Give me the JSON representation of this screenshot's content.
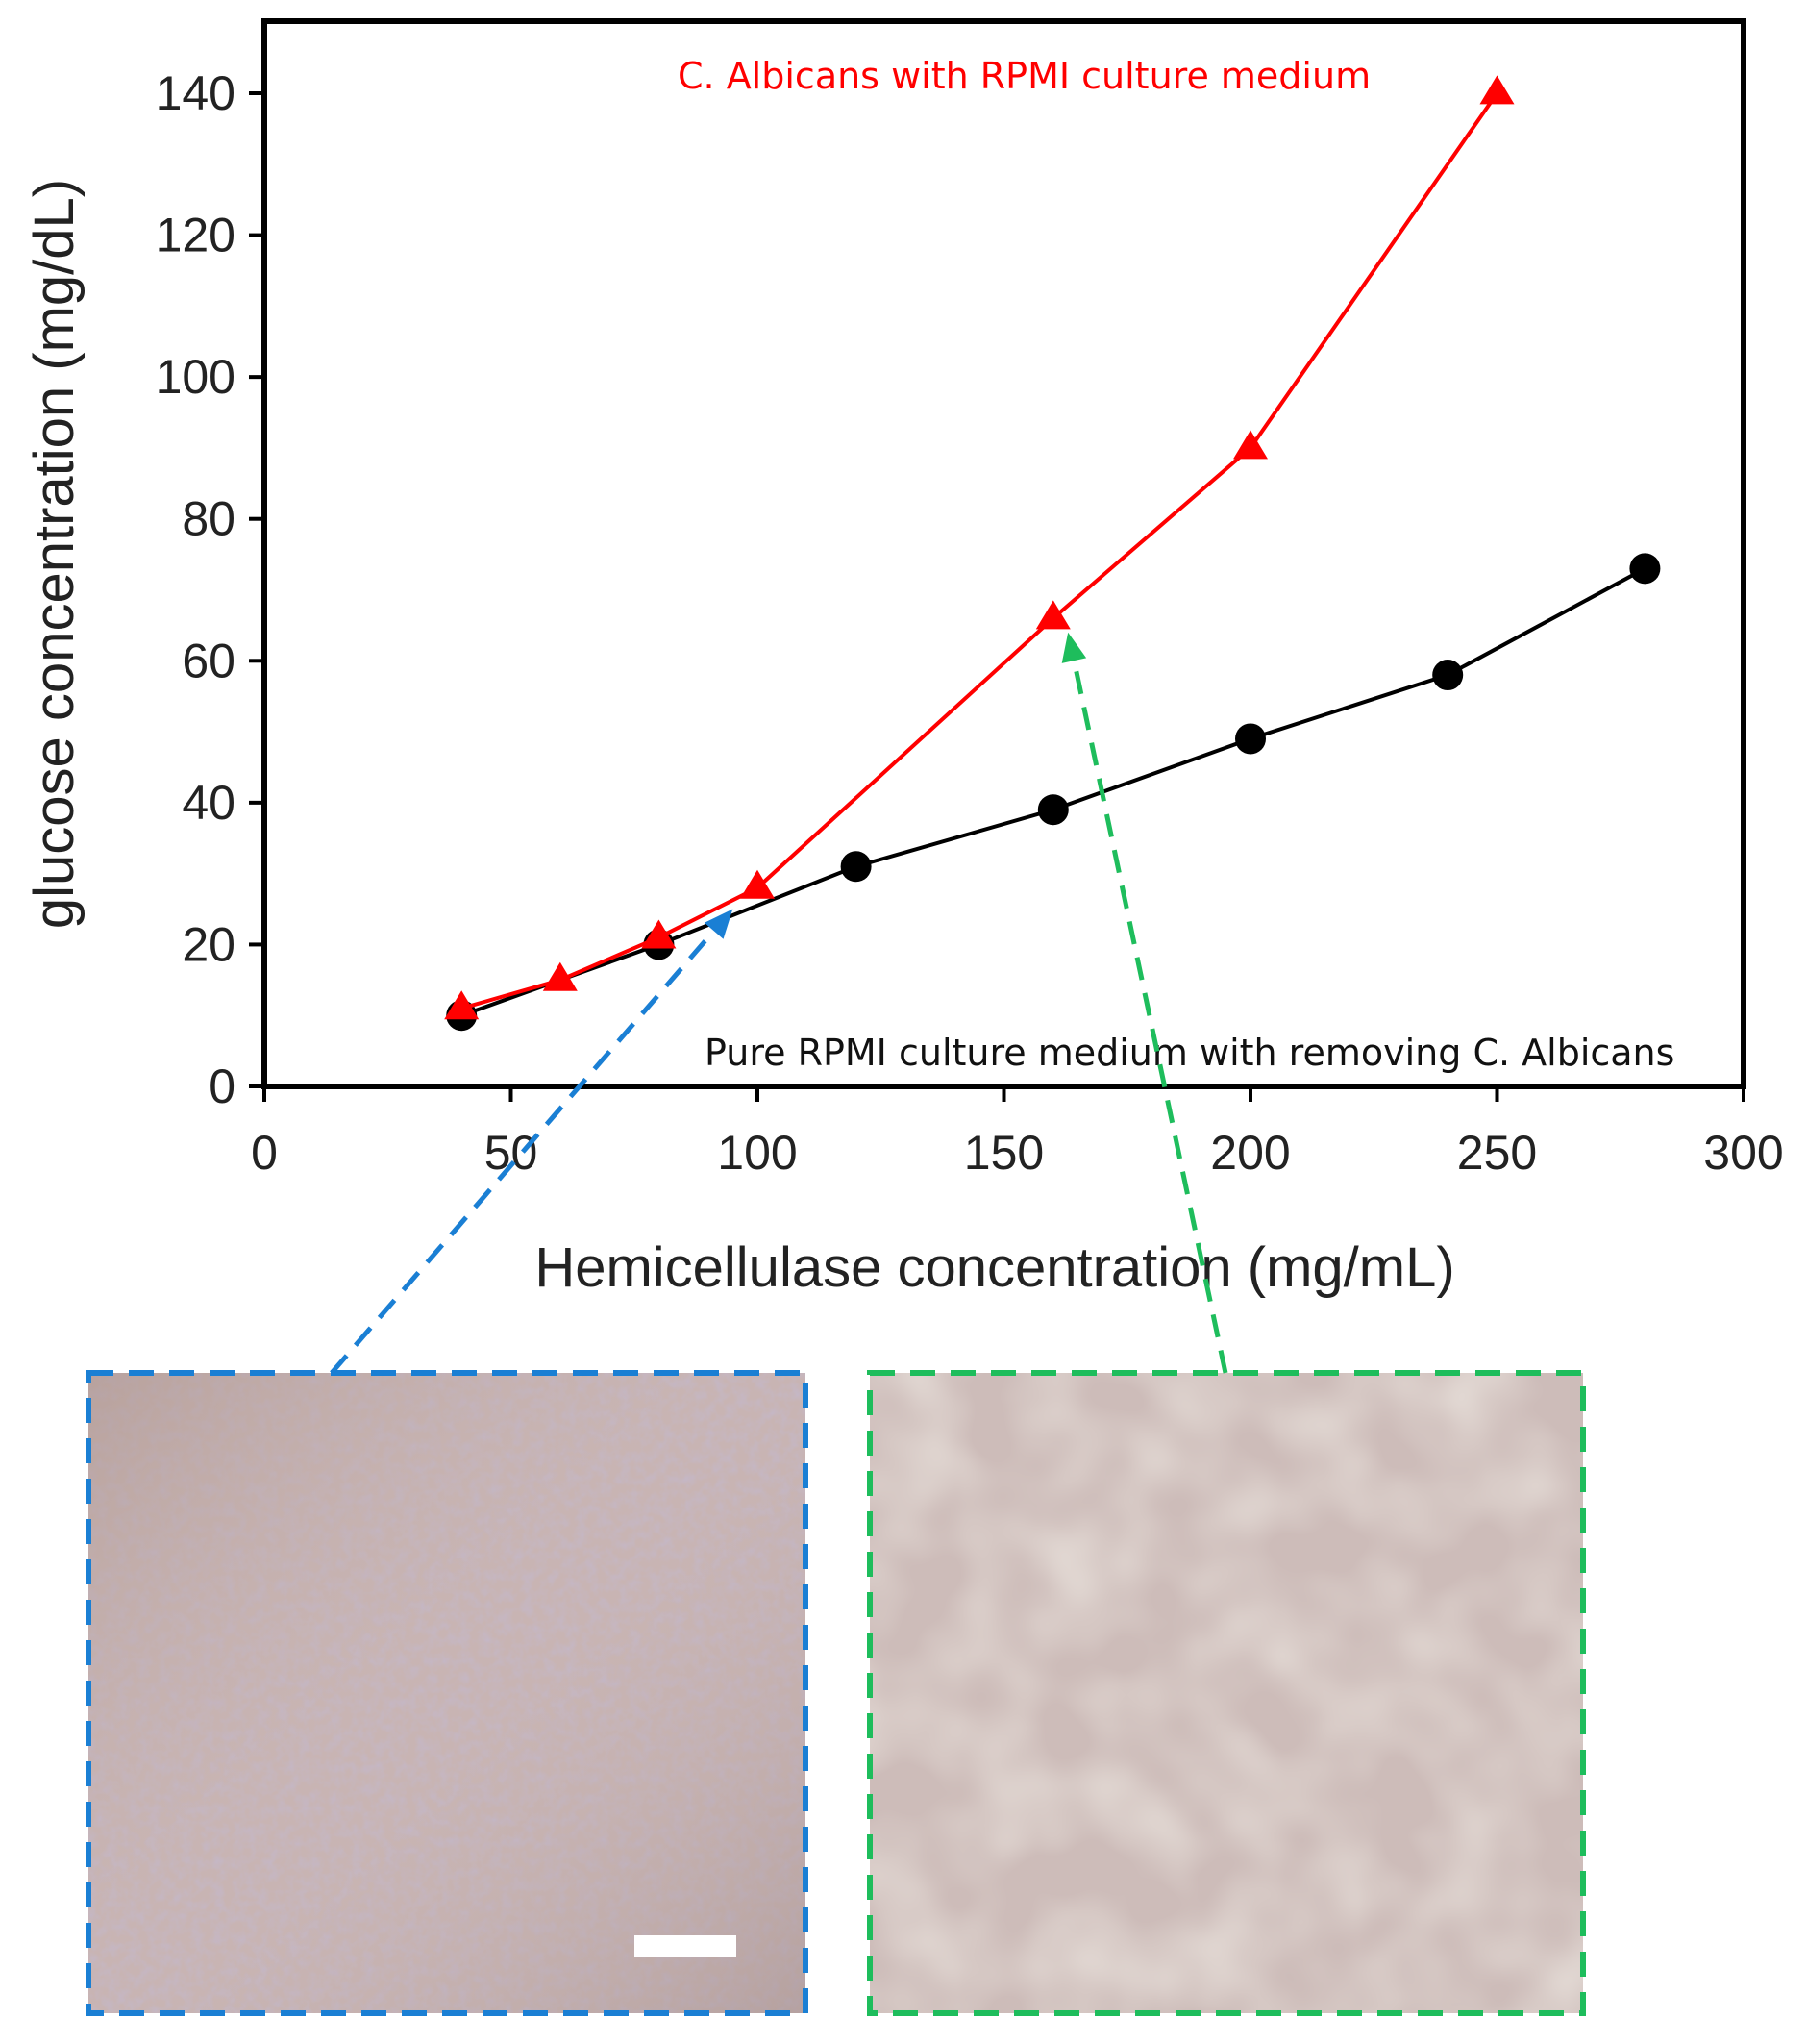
{
  "chart_data": {
    "type": "line",
    "xlabel": "Hemicellulase concentration (mg/mL)",
    "ylabel": "glucose concentration (mg/dL)",
    "xlim": [
      0,
      300
    ],
    "ylim": [
      0,
      140
    ],
    "xticks": [
      "0",
      "50",
      "100",
      "150",
      "200",
      "250",
      "300"
    ],
    "yticks": [
      "0",
      "20",
      "40",
      "60",
      "80",
      "100",
      "120",
      "140"
    ],
    "grid": false,
    "series": [
      {
        "name": "C. Albicans with RPMI culture medium",
        "color": "#ff0000",
        "marker": "triangle",
        "x": [
          40,
          60,
          80,
          100,
          160,
          200,
          250
        ],
        "y": [
          11,
          15,
          21,
          28,
          66,
          90,
          140
        ]
      },
      {
        "name": "Pure RPMI culture medium with removing C. Albicans",
        "color": "#000000",
        "marker": "circle",
        "x": [
          40,
          80,
          120,
          160,
          200,
          240,
          280
        ],
        "y": [
          10,
          20,
          31,
          39,
          49,
          58,
          73
        ]
      }
    ],
    "callouts": [
      {
        "x": 95,
        "y": 25,
        "color": "#1a7fd4"
      },
      {
        "x": 163,
        "y": 64,
        "color": "#1ebd5c"
      }
    ]
  }
}
